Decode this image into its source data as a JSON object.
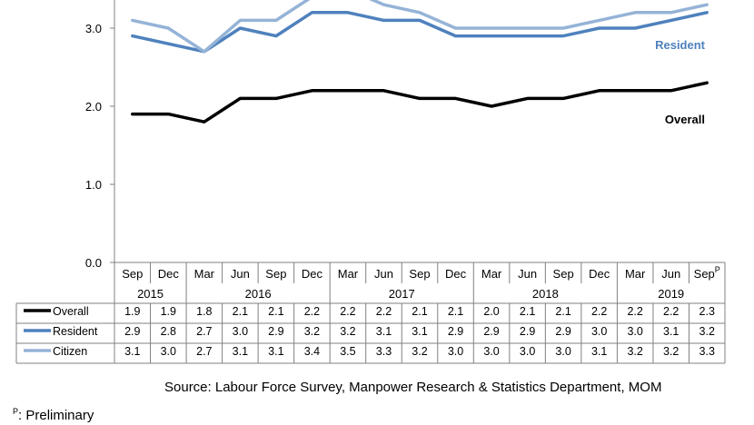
{
  "chart_data": {
    "type": "line",
    "categories": [
      "Sep",
      "Dec",
      "Mar",
      "Jun",
      "Sep",
      "Dec",
      "Mar",
      "Jun",
      "Sep",
      "Dec",
      "Mar",
      "Jun",
      "Sep",
      "Dec",
      "Mar",
      "Jun",
      "Sep"
    ],
    "last_category_superscript": "P",
    "years": [
      {
        "label": "2015",
        "span": 2
      },
      {
        "label": "2016",
        "span": 4
      },
      {
        "label": "2017",
        "span": 4
      },
      {
        "label": "2018",
        "span": 4
      },
      {
        "label": "2019",
        "span": 3
      }
    ],
    "y_ticks": [
      "0.0",
      "1.0",
      "2.0",
      "3.0"
    ],
    "ylim": [
      0,
      3.4
    ],
    "series": [
      {
        "name": "Overall",
        "color": "#000000",
        "label": "Overall",
        "values": [
          1.9,
          1.9,
          1.8,
          2.1,
          2.1,
          2.2,
          2.2,
          2.2,
          2.1,
          2.1,
          2.0,
          2.1,
          2.1,
          2.2,
          2.2,
          2.2,
          2.3
        ]
      },
      {
        "name": "Resident",
        "color": "#4f81bd",
        "label": "Resident",
        "values": [
          2.9,
          2.8,
          2.7,
          3.0,
          2.9,
          3.2,
          3.2,
          3.1,
          3.1,
          2.9,
          2.9,
          2.9,
          2.9,
          3.0,
          3.0,
          3.1,
          3.2
        ]
      },
      {
        "name": "Citizen",
        "color": "#95b3d7",
        "values": [
          3.1,
          3.0,
          2.7,
          3.1,
          3.1,
          3.4,
          3.5,
          3.3,
          3.2,
          3.0,
          3.0,
          3.0,
          3.0,
          3.1,
          3.2,
          3.2,
          3.3
        ]
      }
    ]
  },
  "source": "Source: Labour Force Survey, Manpower Research & Statistics Department, MOM",
  "footnote_mark": "P",
  "footnote_text": ": Preliminary"
}
